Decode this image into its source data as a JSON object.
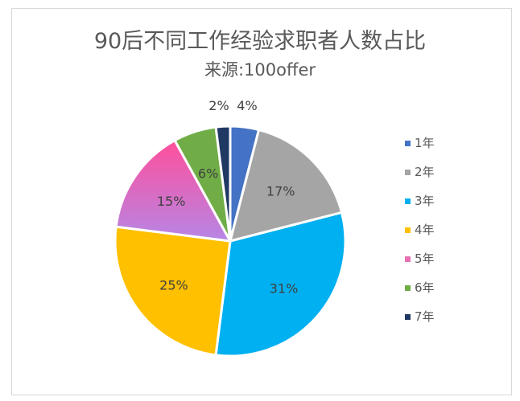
{
  "chart_data": {
    "type": "pie",
    "title": "90后不同工作经验求职者人数占比",
    "subtitle": "来源:100offer",
    "categories": [
      "1年",
      "2年",
      "3年",
      "4年",
      "5年",
      "6年",
      "7年"
    ],
    "values": [
      4,
      17,
      31,
      25,
      15,
      6,
      2
    ],
    "value_labels": [
      "4%",
      "17%",
      "31%",
      "25%",
      "15%",
      "6%",
      "2%"
    ],
    "colors": [
      "#4472c4",
      "#a5a5a5",
      "#00b0f0",
      "#ffc000",
      "#d973c9",
      "#70ad47",
      "#203864"
    ],
    "legend_position": "right"
  }
}
